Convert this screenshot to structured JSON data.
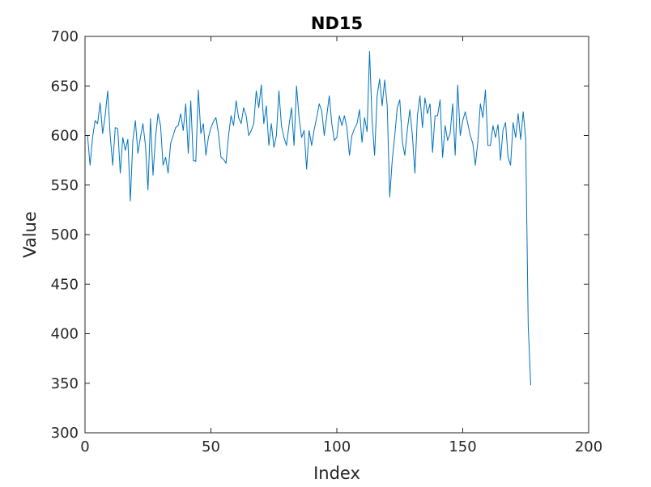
{
  "chart_data": {
    "type": "line",
    "title": "ND15",
    "xlabel": "Index",
    "ylabel": "Value",
    "xlim": [
      0,
      200
    ],
    "ylim": [
      300,
      700
    ],
    "xticks": [
      0,
      50,
      100,
      150,
      200
    ],
    "yticks": [
      300,
      350,
      400,
      450,
      500,
      550,
      600,
      650,
      700
    ],
    "xtick_labels": [
      "0",
      "50",
      "100",
      "150",
      "200"
    ],
    "ytick_labels": [
      "300",
      "350",
      "400",
      "450",
      "500",
      "550",
      "600",
      "650",
      "700"
    ],
    "grid": false,
    "line_color": "#0072BD",
    "series": [
      {
        "values": [
          600,
          570,
          598,
          615,
          612,
          633,
          602,
          620,
          645,
          600,
          570,
          608,
          607,
          562,
          598,
          585,
          596,
          534,
          595,
          615,
          582,
          598,
          612,
          590,
          545,
          617,
          560,
          598,
          622,
          610,
          570,
          578,
          562,
          592,
          600,
          608,
          610,
          622,
          605,
          632,
          582,
          635,
          575,
          574,
          646,
          602,
          612,
          580,
          598,
          608,
          614,
          618,
          602,
          578,
          576,
          572,
          600,
          620,
          610,
          635,
          618,
          612,
          628,
          620,
          600,
          605,
          612,
          645,
          628,
          651,
          612,
          630,
          590,
          612,
          588,
          600,
          645,
          610,
          598,
          590,
          610,
          628,
          590,
          650,
          618,
          598,
          605,
          566,
          605,
          590,
          606,
          618,
          632,
          625,
          600,
          620,
          640,
          612,
          595,
          598,
          620,
          610,
          620,
          608,
          580,
          600,
          607,
          612,
          626,
          593,
          618,
          604,
          685,
          615,
          580,
          640,
          657,
          630,
          656,
          630,
          538,
          575,
          600,
          628,
          636,
          594,
          580,
          606,
          626,
          600,
          562,
          620,
          640,
          608,
          638,
          622,
          632,
          583,
          620,
          620,
          636,
          578,
          610,
          595,
          602,
          632,
          580,
          651,
          600,
          615,
          624,
          612,
          600,
          592,
          570,
          594,
          632,
          618,
          646,
          590,
          590,
          610,
          598,
          611,
          575,
          606,
          613,
          578,
          570,
          613,
          598,
          622,
          596,
          624,
          596,
          408,
          348
        ]
      }
    ]
  }
}
